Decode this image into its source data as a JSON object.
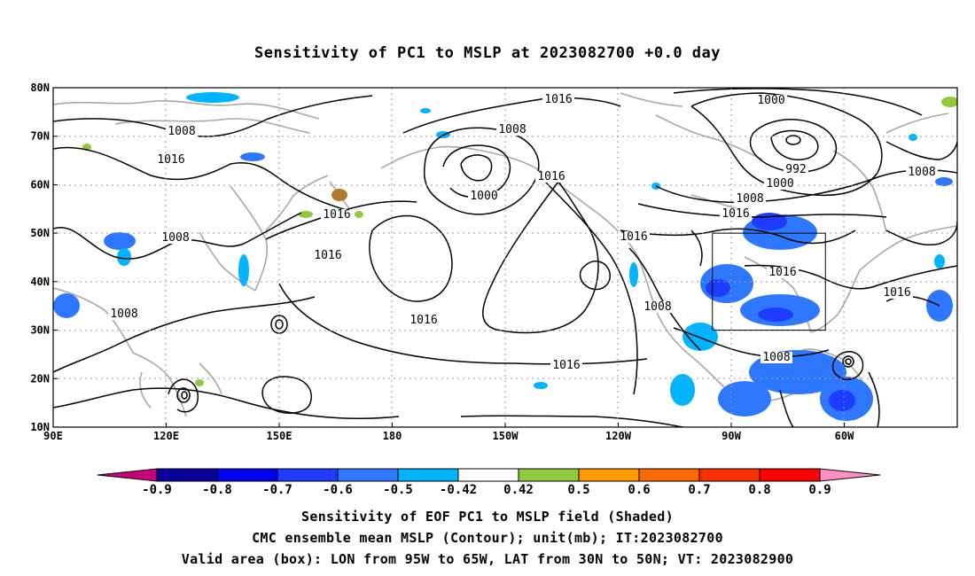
{
  "title": "Sensitivity of PC1 to MSLP at 2023082700 +0.0 day",
  "axes": {
    "lat_labels": [
      "80N",
      "70N",
      "60N",
      "50N",
      "40N",
      "30N",
      "20N",
      "10N"
    ],
    "lon_labels": [
      "90E",
      "120E",
      "150E",
      "180",
      "150W",
      "120W",
      "90W",
      "60W"
    ],
    "lat_range": [
      10,
      80
    ],
    "lon_range_degE": [
      90,
      330
    ],
    "grid": "dotted"
  },
  "contour_labels": [
    "1016",
    "1008",
    "1000",
    "1000",
    "1008",
    "1016",
    "1016",
    "1008",
    "992",
    "1000",
    "1008",
    "1016",
    "1016",
    "1008",
    "1016",
    "1016",
    "1008",
    "1016",
    "1016",
    "1016",
    "1008",
    "1008",
    "1016"
  ],
  "valid_box": {
    "lon_west": -95,
    "lon_east": -65,
    "lat_south": 30,
    "lat_north": 50
  },
  "colorbar": {
    "labels": [
      "-0.9",
      "-0.8",
      "-0.7",
      "-0.6",
      "-0.5",
      "-0.42",
      "0.42",
      "0.5",
      "0.6",
      "0.7",
      "0.8",
      "0.9"
    ],
    "colors": [
      "#0a00a0",
      "#0000f0",
      "#1e3cff",
      "#2e78ff",
      "#00b4ff",
      "#ffffff",
      "#94c83c",
      "#ff9a00",
      "#ff6a00",
      "#ff3000",
      "#ff0000"
    ],
    "end_low_color": "#c8007a",
    "end_high_color": "#ff90c0"
  },
  "captions": [
    "Sensitivity of EOF PC1 to MSLP field (Shaded)",
    "CMC ensemble mean MSLP (Contour); unit(mb); IT:2023082700",
    "Valid area (box): LON from 95W to 65W, LAT from 30N to 50N; VT: 2023082900"
  ]
}
